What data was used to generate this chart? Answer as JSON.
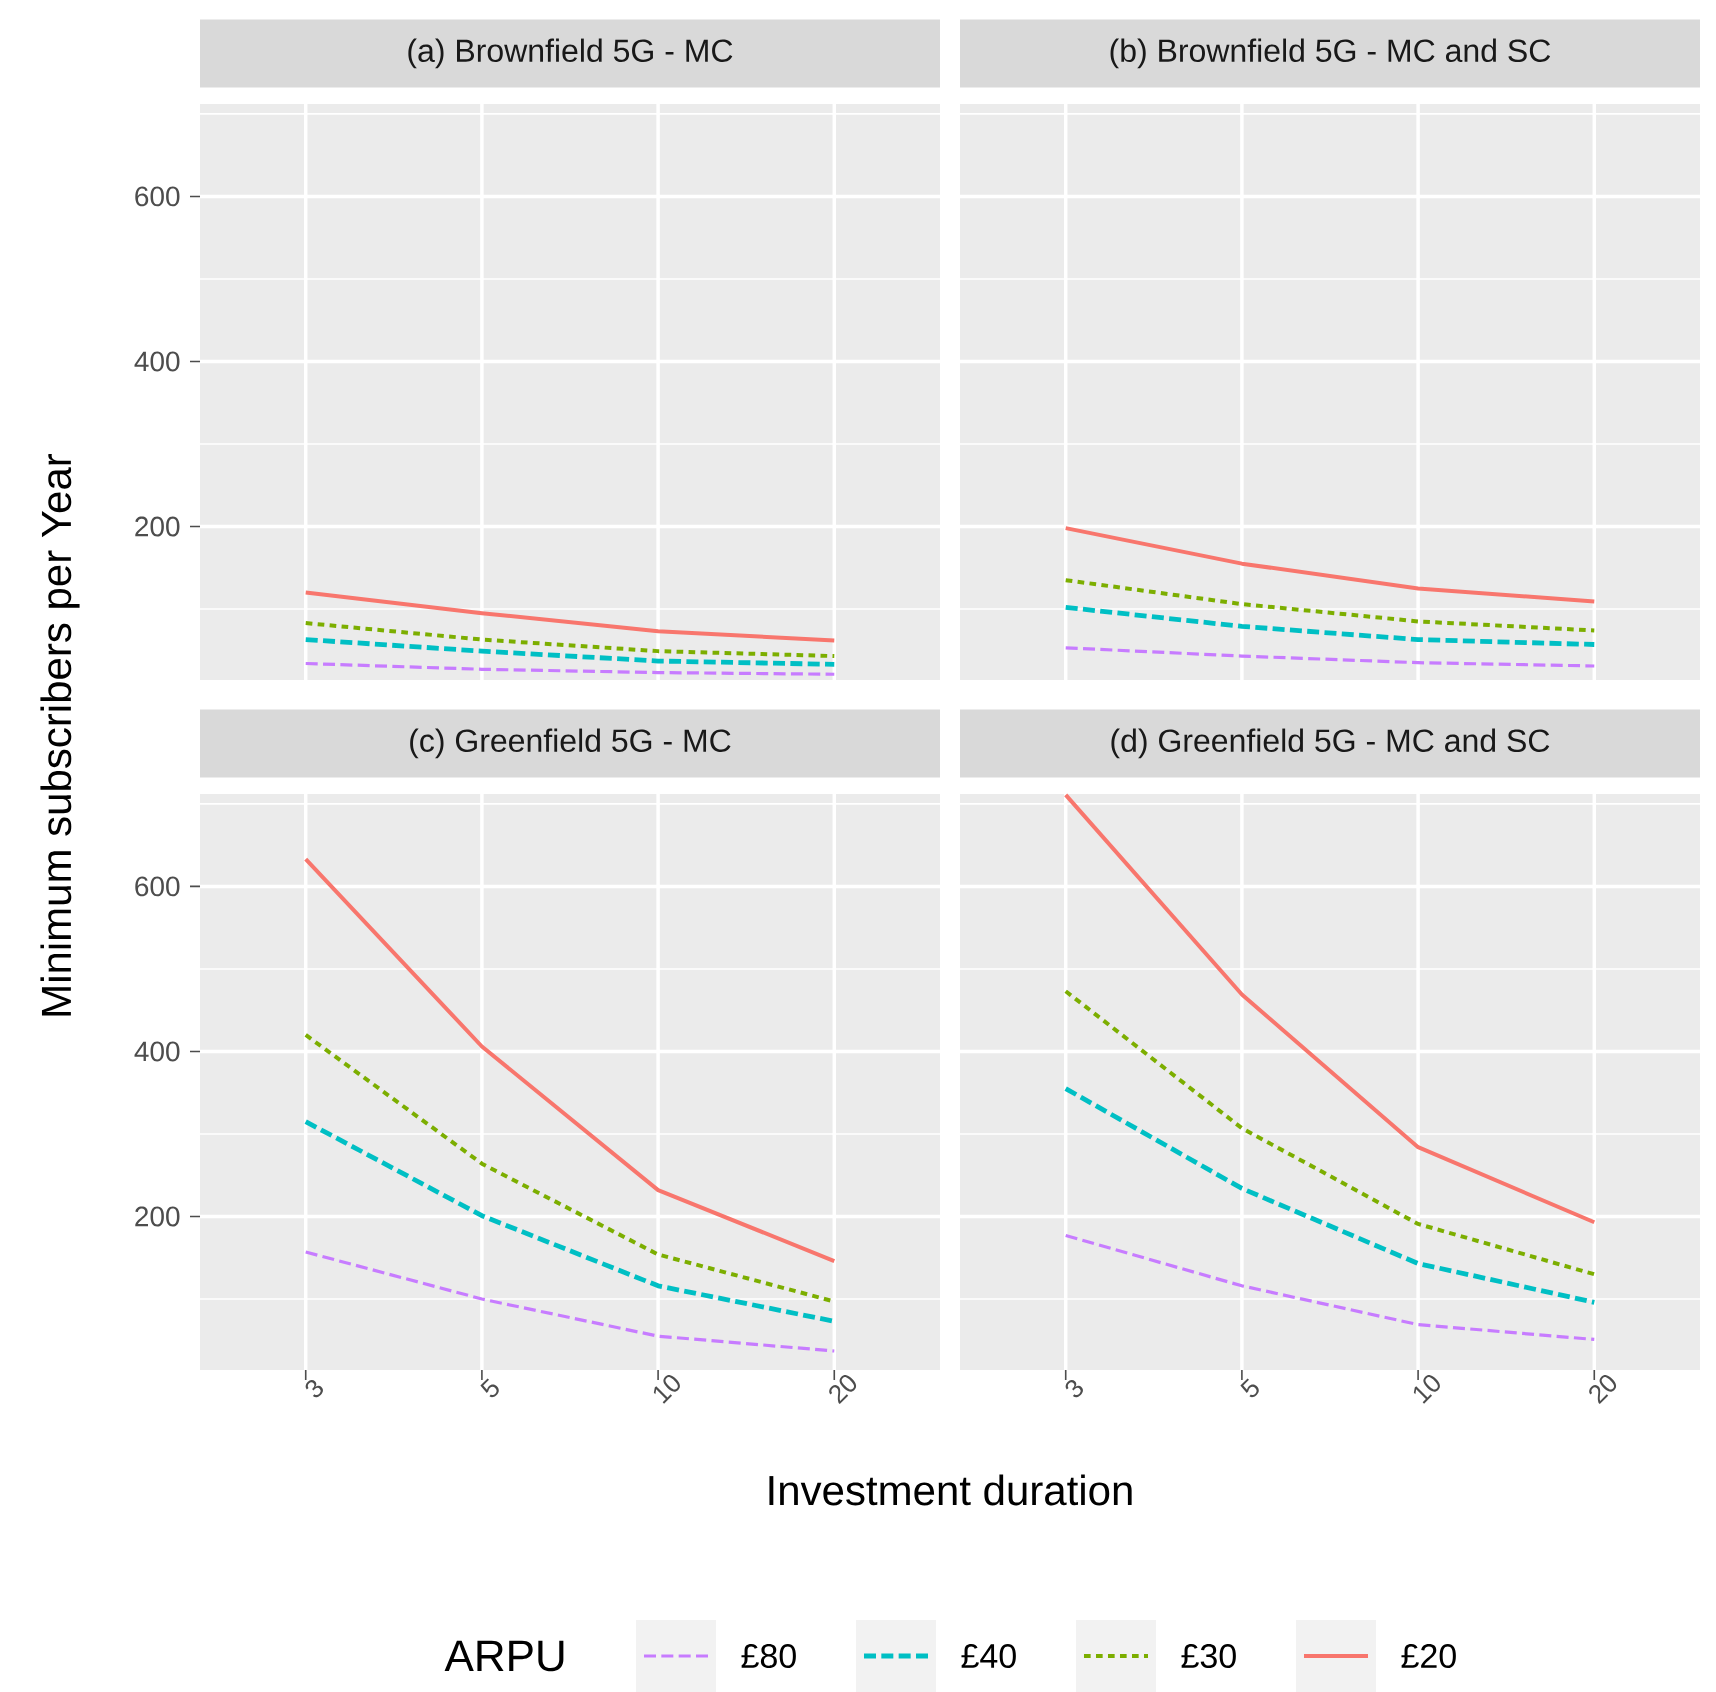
{
  "chart_data": [
    {
      "type": "line",
      "title": "(a) Brownfield 5G - MC",
      "ylabel": "Minimum subscribers per Year",
      "legend": "bottom",
      "legend_title": "ARPU",
      "grid": true,
      "tick_labels": "y",
      "categories": [
        "3",
        "5",
        "10",
        "20"
      ],
      "ylim": [
        14,
        712
      ],
      "yticks": [
        {
          "value": 100,
          "label": null
        },
        200,
        {
          "value": 300,
          "label": null
        },
        400,
        {
          "value": 500,
          "label": null
        },
        600,
        {
          "value": 700,
          "label": null
        }
      ],
      "series": [
        {
          "name": "£80",
          "color": "#c77cff",
          "line_style": "dashed",
          "values": [
            34,
            27,
            23,
            21
          ]
        },
        {
          "name": "£40",
          "color": "#00bfc4",
          "line_style": "dashed",
          "values": [
            63,
            49,
            37,
            33
          ]
        },
        {
          "name": "£30",
          "color": "#7cae00",
          "line_style": "dotted",
          "values": [
            83,
            63,
            49,
            43
          ]
        },
        {
          "name": "£20",
          "color": "#f8766d",
          "line_style": "solid",
          "values": [
            120,
            95,
            73,
            62
          ]
        }
      ]
    },
    {
      "type": "line",
      "title": "(b) Brownfield 5G - MC and SC",
      "grid": true,
      "tick_labels": false,
      "categories": [
        "3",
        "5",
        "10",
        "20"
      ],
      "ylim": [
        14,
        712
      ],
      "yticks": [
        {
          "value": 100,
          "label": null
        },
        200,
        {
          "value": 300,
          "label": null
        },
        400,
        {
          "value": 500,
          "label": null
        },
        600,
        {
          "value": 700,
          "label": null
        }
      ],
      "series": [
        {
          "color": "#c77cff",
          "line_style": "dashed",
          "values": [
            53,
            43,
            35,
            31
          ]
        },
        {
          "color": "#00bfc4",
          "line_style": "dashed",
          "values": [
            102,
            79,
            63,
            57
          ]
        },
        {
          "color": "#7cae00",
          "line_style": "dotted",
          "values": [
            135,
            106,
            85,
            74
          ]
        },
        {
          "color": "#f8766d",
          "line_style": "solid",
          "values": [
            198,
            155,
            125,
            109
          ]
        }
      ]
    },
    {
      "type": "line",
      "title": "(c) Greenfield 5G - MC",
      "xlabel": "Investment duration",
      "grid": true,
      "categories": [
        "3",
        "5",
        "10",
        "20"
      ],
      "ylim": [
        14,
        712
      ],
      "yticks": [
        {
          "value": 100,
          "label": null
        },
        200,
        {
          "value": 300,
          "label": null
        },
        400,
        {
          "value": 500,
          "label": null
        },
        600,
        {
          "value": 700,
          "label": null
        }
      ],
      "series": [
        {
          "color": "#c77cff",
          "line_style": "dashed",
          "values": [
            157,
            100,
            55,
            37
          ]
        },
        {
          "color": "#00bfc4",
          "line_style": "dashed",
          "values": [
            315,
            201,
            116,
            73
          ]
        },
        {
          "color": "#7cae00",
          "line_style": "dotted",
          "values": [
            420,
            264,
            154,
            97
          ]
        },
        {
          "color": "#f8766d",
          "line_style": "solid",
          "values": [
            633,
            406,
            232,
            146
          ]
        }
      ]
    },
    {
      "type": "line",
      "title": "(d) Greenfield 5G - MC and SC",
      "grid": true,
      "tick_labels": "x",
      "categories": [
        "3",
        "5",
        "10",
        "20"
      ],
      "ylim": [
        14,
        712
      ],
      "yticks": [
        {
          "value": 100,
          "label": null
        },
        200,
        {
          "value": 300,
          "label": null
        },
        400,
        {
          "value": 500,
          "label": null
        },
        600,
        {
          "value": 700,
          "label": null
        }
      ],
      "series": [
        {
          "color": "#c77cff",
          "line_style": "dashed",
          "values": [
            177,
            116,
            69,
            51
          ]
        },
        {
          "color": "#00bfc4",
          "line_style": "dashed",
          "values": [
            355,
            234,
            143,
            96
          ]
        },
        {
          "color": "#7cae00",
          "line_style": "dotted",
          "values": [
            473,
            307,
            191,
            130
          ]
        },
        {
          "color": "#f8766d",
          "line_style": "solid",
          "values": [
            711,
            469,
            284,
            193
          ]
        }
      ]
    }
  ]
}
